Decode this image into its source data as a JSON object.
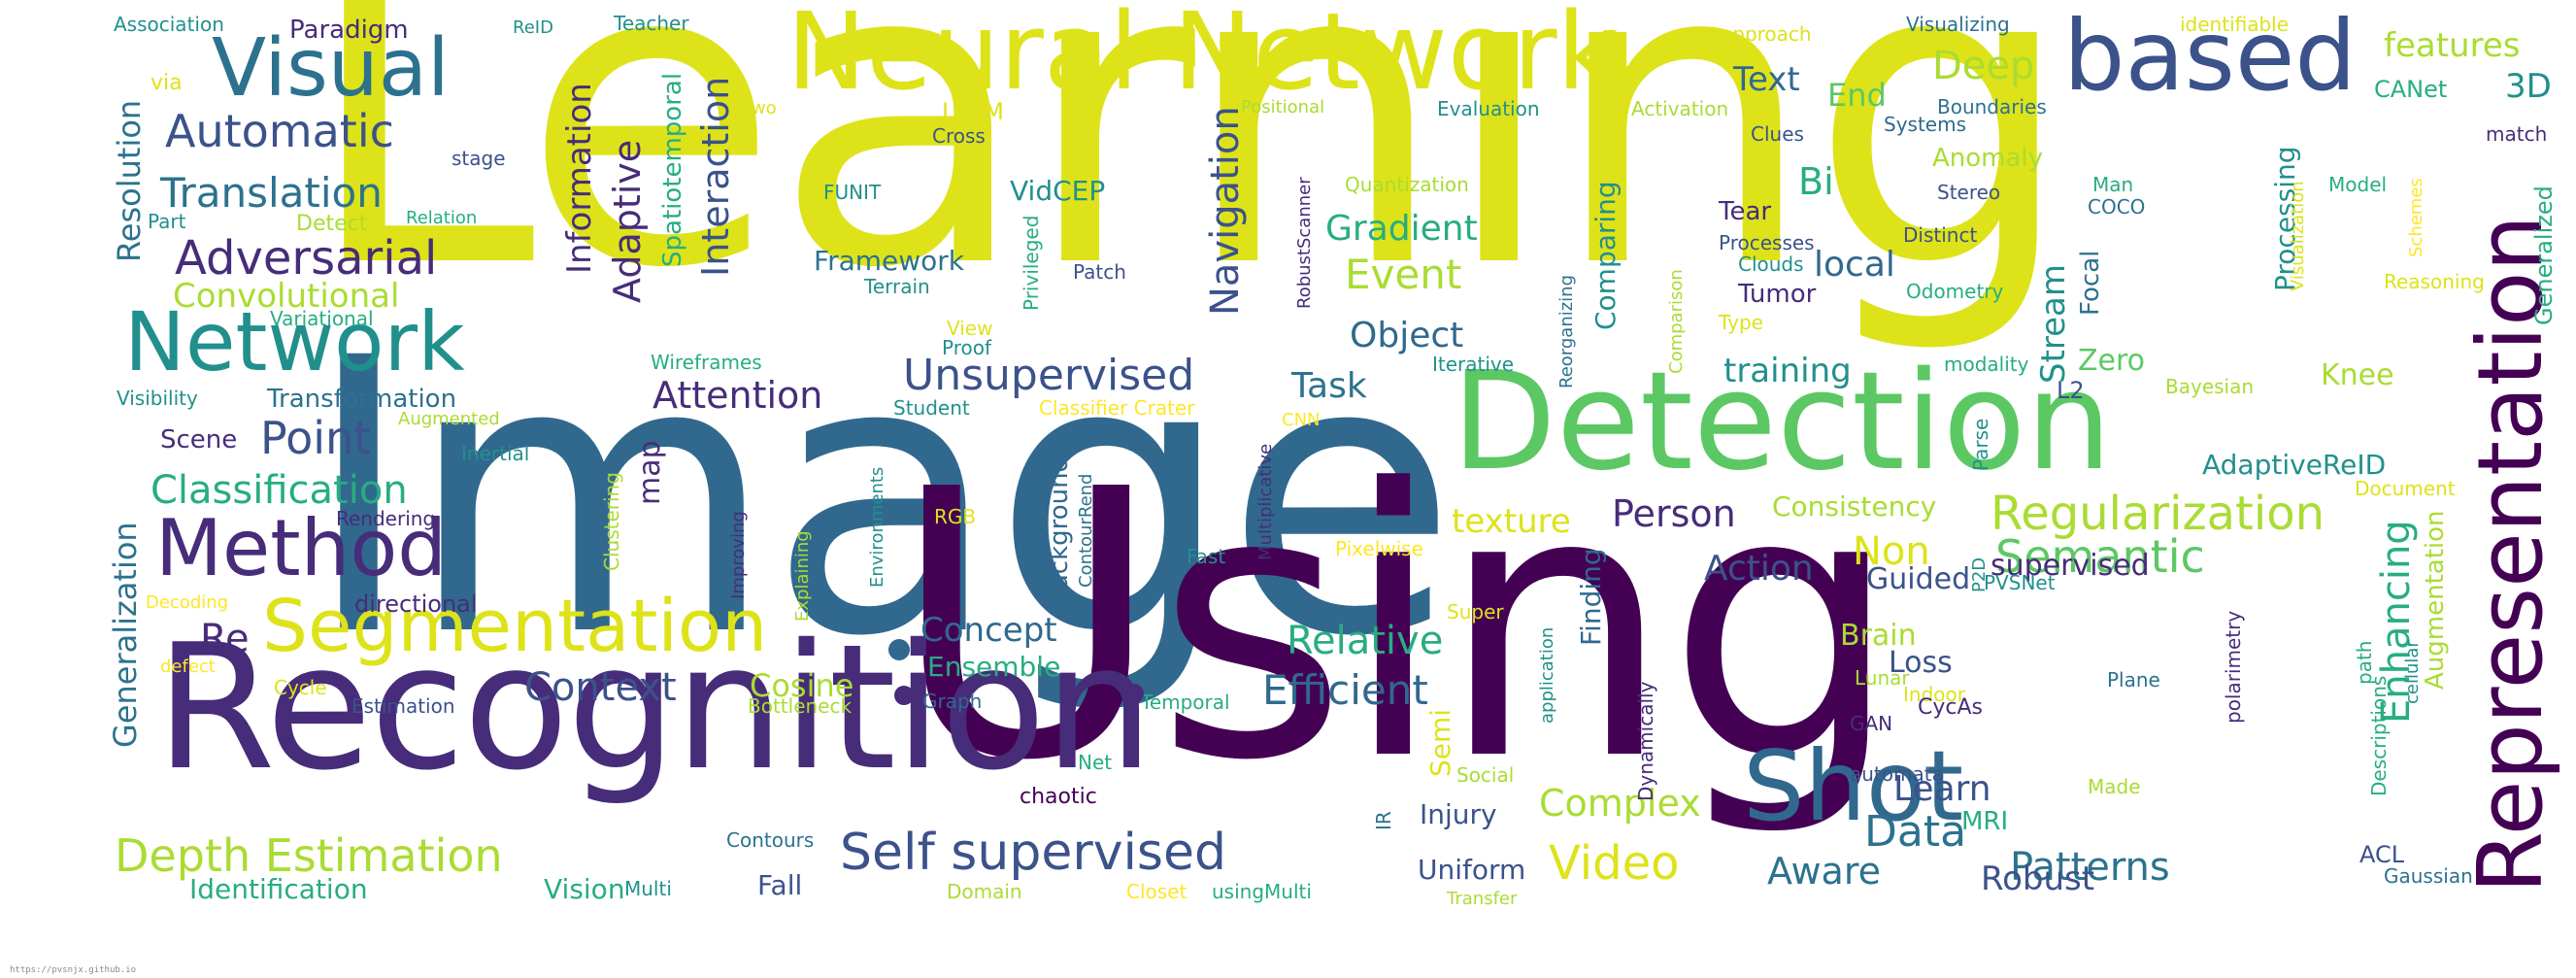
{
  "footer": {
    "url": "https://pvsnjx.github.io"
  },
  "colors": {
    "c1": "#440154",
    "c2": "#472c7a",
    "c3": "#3b528b",
    "c4": "#2c728e",
    "c5": "#21908d",
    "c6": "#27ad81",
    "c7": "#5cc863",
    "c8": "#aadc32",
    "c9": "#dde318",
    "c10": "#fde725"
  },
  "words": [
    {
      "text": "Learning",
      "color": "#dde318"
    },
    {
      "text": "Image",
      "color": "#31688e"
    },
    {
      "text": "Using",
      "color": "#440154"
    },
    {
      "text": "Recognition",
      "color": "#472c7a"
    },
    {
      "text": "Detection",
      "color": "#5cc863"
    },
    {
      "text": "Neural Network",
      "color": "#dde318"
    },
    {
      "text": "based",
      "color": "#3b528b"
    },
    {
      "text": "Representation",
      "color": "#440154"
    },
    {
      "text": "Shot",
      "color": "#31688e"
    },
    {
      "text": "Segmentation",
      "color": "#dde318"
    },
    {
      "text": "Method",
      "color": "#472c7a"
    },
    {
      "text": "Network",
      "color": "#21908d"
    },
    {
      "text": "Visual",
      "color": "#2c728e"
    },
    {
      "text": "Self supervised",
      "color": "#3b528b"
    },
    {
      "text": "Depth Estimation",
      "color": "#aadc32"
    },
    {
      "text": "Regularization",
      "color": "#aadc32"
    },
    {
      "text": "Adversarial",
      "color": "#472c7a"
    },
    {
      "text": "Automatic",
      "color": "#3b528b"
    },
    {
      "text": "Translation",
      "color": "#2c728e"
    },
    {
      "text": "Classification",
      "color": "#27ad81"
    },
    {
      "text": "Convolutional",
      "color": "#aadc32"
    },
    {
      "text": "Point",
      "color": "#3b528b"
    },
    {
      "text": "Unsupervised",
      "color": "#3b528b"
    },
    {
      "text": "Attention",
      "color": "#472c7a"
    },
    {
      "text": "Semantic",
      "color": "#5cc863"
    },
    {
      "text": "Video",
      "color": "#dde318"
    },
    {
      "text": "Data",
      "color": "#2c728e"
    },
    {
      "text": "Patterns",
      "color": "#2c728e"
    },
    {
      "text": "Complex",
      "color": "#aadc32"
    },
    {
      "text": "Efficient",
      "color": "#31688e"
    },
    {
      "text": "Context",
      "color": "#3b528b"
    },
    {
      "text": "Relative",
      "color": "#27ad81"
    },
    {
      "text": "Aware",
      "color": "#2c728e"
    },
    {
      "text": "Robust",
      "color": "#3b528b"
    },
    {
      "text": "Person",
      "color": "#472c7a"
    },
    {
      "text": "Deep",
      "color": "#aadc32"
    },
    {
      "text": "Gradient",
      "color": "#27ad81"
    },
    {
      "text": "Event",
      "color": "#aadc32"
    },
    {
      "text": "Object",
      "color": "#31688e"
    },
    {
      "text": "Task",
      "color": "#2c728e"
    },
    {
      "text": "Enhancing",
      "color": "#27ad81"
    },
    {
      "text": "Navigation",
      "color": "#3b528b"
    },
    {
      "text": "Interaction",
      "color": "#3b528b"
    },
    {
      "text": "Adaptive",
      "color": "#472c7a"
    },
    {
      "text": "Information",
      "color": "#472c7a"
    },
    {
      "text": "Resolution",
      "color": "#2c728e"
    },
    {
      "text": "Generalization",
      "color": "#2c728e"
    },
    {
      "text": "Concept",
      "color": "#31688e"
    },
    {
      "text": "Cosine",
      "color": "#aadc32"
    },
    {
      "text": "Ensemble",
      "color": "#27ad81"
    },
    {
      "text": "Action",
      "color": "#3b528b"
    },
    {
      "text": "Non",
      "color": "#dde318"
    },
    {
      "text": "texture",
      "color": "#dde318"
    },
    {
      "text": "Consistency",
      "color": "#aadc32"
    },
    {
      "text": "supervised",
      "color": "#472c7a"
    },
    {
      "text": "Guided",
      "color": "#3b528b"
    },
    {
      "text": "Learn",
      "color": "#3b528b"
    },
    {
      "text": "Loss",
      "color": "#3b528b"
    },
    {
      "text": "Brain",
      "color": "#aadc32"
    },
    {
      "text": "AdaptiveReID",
      "color": "#21908d"
    },
    {
      "text": "Knee",
      "color": "#aadc32"
    },
    {
      "text": "Zero",
      "color": "#5cc863"
    },
    {
      "text": "Stream",
      "color": "#21908d"
    },
    {
      "text": "training",
      "color": "#21908d"
    },
    {
      "text": "local",
      "color": "#31688e"
    },
    {
      "text": "Text",
      "color": "#31688e"
    },
    {
      "text": "End",
      "color": "#5cc863"
    },
    {
      "text": "Bi",
      "color": "#27ad81"
    },
    {
      "text": "Tear",
      "color": "#472c7a"
    },
    {
      "text": "Tumor",
      "color": "#472c7a"
    },
    {
      "text": "features",
      "color": "#aadc32"
    },
    {
      "text": "3D",
      "color": "#21908d"
    },
    {
      "text": "Framework",
      "color": "#2c728e"
    },
    {
      "text": "VidCEP",
      "color": "#21908d"
    },
    {
      "text": "Scene",
      "color": "#472c7a"
    },
    {
      "text": "Transformation",
      "color": "#2c728e"
    },
    {
      "text": "map",
      "color": "#472c7a"
    },
    {
      "text": "Re",
      "color": "#472c7a"
    },
    {
      "text": "Identification",
      "color": "#27ad81"
    },
    {
      "text": "Vision",
      "color": "#27ad81"
    },
    {
      "text": "Fall",
      "color": "#3b528b"
    },
    {
      "text": "Uniform",
      "color": "#3b528b"
    },
    {
      "text": "Injury",
      "color": "#3b528b"
    },
    {
      "text": "Semi",
      "color": "#dde318"
    },
    {
      "text": "Processing",
      "color": "#21908d"
    },
    {
      "text": "Comparing",
      "color": "#21908d"
    },
    {
      "text": "Finding",
      "color": "#31688e"
    },
    {
      "text": "Anomaly",
      "color": "#aadc32"
    },
    {
      "text": "Augmentation",
      "color": "#aadc32"
    },
    {
      "text": "Focal",
      "color": "#2c728e"
    },
    {
      "text": "Spatiotemporal",
      "color": "#27ad81"
    },
    {
      "text": "Background",
      "color": "#31688e"
    },
    {
      "text": "Multi",
      "color": "#21908d"
    },
    {
      "text": "ACL",
      "color": "#3b528b"
    },
    {
      "text": "MRI",
      "color": "#27ad81"
    },
    {
      "text": "Paradigm",
      "color": "#472c7a"
    },
    {
      "text": "Association",
      "color": "#21908d"
    },
    {
      "text": "ReID",
      "color": "#21908d"
    },
    {
      "text": "Teacher",
      "color": "#21908d"
    },
    {
      "text": "via",
      "color": "#dde318"
    },
    {
      "text": "stage",
      "color": "#3b528b"
    },
    {
      "text": "Part",
      "color": "#21908d"
    },
    {
      "text": "Detect",
      "color": "#aadc32"
    },
    {
      "text": "Relation",
      "color": "#27ad81"
    },
    {
      "text": "Variational",
      "color": "#27ad81"
    },
    {
      "text": "Visibility",
      "color": "#21908d"
    },
    {
      "text": "Augmented",
      "color": "#aadc32"
    },
    {
      "text": "Inertial",
      "color": "#21908d"
    },
    {
      "text": "Rendering",
      "color": "#472c7a"
    },
    {
      "text": "directional",
      "color": "#472c7a"
    },
    {
      "text": "Decoding",
      "color": "#fde725"
    },
    {
      "text": "defect",
      "color": "#fde725"
    },
    {
      "text": "Cycle",
      "color": "#dde318"
    },
    {
      "text": "Estimation",
      "color": "#3b528b"
    },
    {
      "text": "Bottleneck",
      "color": "#aadc32"
    },
    {
      "text": "Graph",
      "color": "#31688e"
    },
    {
      "text": "Temporal",
      "color": "#27ad81"
    },
    {
      "text": "Contours",
      "color": "#2c728e"
    },
    {
      "text": "Domain",
      "color": "#aadc32"
    },
    {
      "text": "Closet",
      "color": "#fde725"
    },
    {
      "text": "usingMulti",
      "color": "#27ad81"
    },
    {
      "text": "Transfer",
      "color": "#aadc32"
    },
    {
      "text": "chaotic",
      "color": "#440154"
    },
    {
      "text": "Net",
      "color": "#27ad81"
    },
    {
      "text": "IR",
      "color": "#2c728e"
    },
    {
      "text": "Social",
      "color": "#aadc32"
    },
    {
      "text": "Dynamically",
      "color": "#472c7a"
    },
    {
      "text": "application",
      "color": "#21908d"
    },
    {
      "text": "Super",
      "color": "#dde318"
    },
    {
      "text": "Pixelwise",
      "color": "#fde725"
    },
    {
      "text": "Fast",
      "color": "#21908d"
    },
    {
      "text": "Multiplicative",
      "color": "#472c7a"
    },
    {
      "text": "CNN",
      "color": "#fde725"
    },
    {
      "text": "ContourRend",
      "color": "#2c728e"
    },
    {
      "text": "Environments",
      "color": "#21908d"
    },
    {
      "text": "Explaining",
      "color": "#aadc32"
    },
    {
      "text": "Improving",
      "color": "#472c7a"
    },
    {
      "text": "Clustering",
      "color": "#aadc32"
    },
    {
      "text": "RGB",
      "color": "#dde318"
    },
    {
      "text": "Classifier Crater",
      "color": "#fde725"
    },
    {
      "text": "Student",
      "color": "#21908d"
    },
    {
      "text": "View",
      "color": "#dde318"
    },
    {
      "text": "Proof",
      "color": "#21908d"
    },
    {
      "text": "Privileged",
      "color": "#27ad81"
    },
    {
      "text": "Patch",
      "color": "#3b528b"
    },
    {
      "text": "Terrain",
      "color": "#21908d"
    },
    {
      "text": "FUNIT",
      "color": "#21908d"
    },
    {
      "text": "LSTM",
      "color": "#dde318"
    },
    {
      "text": "Cross",
      "color": "#3b528b"
    },
    {
      "text": "two",
      "color": "#dde318"
    },
    {
      "text": "Positional",
      "color": "#aadc32"
    },
    {
      "text": "Evaluation",
      "color": "#21908d"
    },
    {
      "text": "Activation",
      "color": "#aadc32"
    },
    {
      "text": "Quantization",
      "color": "#aadc32"
    },
    {
      "text": "RobustScanner",
      "color": "#472c7a"
    },
    {
      "text": "Iterative",
      "color": "#21908d"
    },
    {
      "text": "Wireframes",
      "color": "#27ad81"
    },
    {
      "text": "Reorganizing",
      "color": "#2c728e"
    },
    {
      "text": "Comparison",
      "color": "#aadc32"
    },
    {
      "text": "Type",
      "color": "#dde318"
    },
    {
      "text": "Clouds",
      "color": "#21908d"
    },
    {
      "text": "Processes",
      "color": "#3b528b"
    },
    {
      "text": "Distinct",
      "color": "#3b528b"
    },
    {
      "text": "Stereo",
      "color": "#3b528b"
    },
    {
      "text": "COCO",
      "color": "#2c728e"
    },
    {
      "text": "Man",
      "color": "#27ad81"
    },
    {
      "text": "Odometry",
      "color": "#27ad81"
    },
    {
      "text": "modality",
      "color": "#27ad81"
    },
    {
      "text": "Bayesian",
      "color": "#aadc32"
    },
    {
      "text": "L2",
      "color": "#3b528b"
    },
    {
      "text": "Parse",
      "color": "#21908d"
    },
    {
      "text": "Clues",
      "color": "#3b528b"
    },
    {
      "text": "Systems",
      "color": "#31688e"
    },
    {
      "text": "Boundaries",
      "color": "#2c728e"
    },
    {
      "text": "approach",
      "color": "#dde318"
    },
    {
      "text": "Visualizing",
      "color": "#2c728e"
    },
    {
      "text": "identifiable",
      "color": "#dde318"
    },
    {
      "text": "CANet",
      "color": "#27ad81"
    },
    {
      "text": "match",
      "color": "#472c7a"
    },
    {
      "text": "Model",
      "color": "#27ad81"
    },
    {
      "text": "Schemes",
      "color": "#fde725"
    },
    {
      "text": "Visualization",
      "color": "#dde318"
    },
    {
      "text": "Reasoning",
      "color": "#dde318"
    },
    {
      "text": "Generalized",
      "color": "#27ad81"
    },
    {
      "text": "Document",
      "color": "#dde318"
    },
    {
      "text": "P2D",
      "color": "#21908d"
    },
    {
      "text": "PVSNet",
      "color": "#21908d"
    },
    {
      "text": "Indoor",
      "color": "#dde318"
    },
    {
      "text": "Lunar",
      "color": "#aadc32"
    },
    {
      "text": "GAN",
      "color": "#472c7a"
    },
    {
      "text": "CycAs",
      "color": "#472c7a"
    },
    {
      "text": "Plane",
      "color": "#2c728e"
    },
    {
      "text": "polarimetry",
      "color": "#472c7a"
    },
    {
      "text": "path",
      "color": "#27ad81"
    },
    {
      "text": "cellular",
      "color": "#21908d"
    },
    {
      "text": "Descriptions",
      "color": "#27ad81"
    },
    {
      "text": "Made",
      "color": "#aadc32"
    },
    {
      "text": "automata",
      "color": "#3b528b"
    },
    {
      "text": "Gaussian",
      "color": "#2c728e"
    }
  ]
}
